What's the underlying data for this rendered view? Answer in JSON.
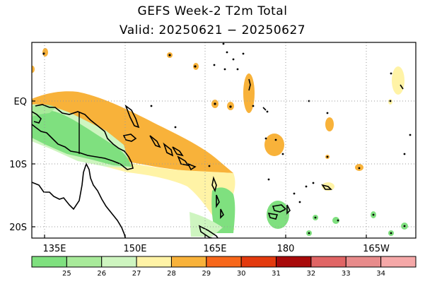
{
  "title": "GEFS Week-2 T2m Total",
  "subtitle": "Valid: 20250621 − 20250627",
  "map": {
    "region": "Western Pacific / Maritime Continent",
    "lon_labels": [
      "135E",
      "150E",
      "165E",
      "180",
      "165W"
    ],
    "lat_labels": [
      "EQ",
      "10S",
      "20S"
    ],
    "grid": "dotted"
  },
  "colorbar": {
    "labels": [
      "25",
      "26",
      "27",
      "28",
      "29",
      "30",
      "31",
      "32",
      "33",
      "34"
    ],
    "colors": [
      "#7fe07f",
      "#a8ea9a",
      "#cef5c0",
      "#fff3a6",
      "#f8b23a",
      "#f7671a",
      "#e33a0e",
      "#a80a0a",
      "#e06565",
      "#e88b8b",
      "#f5a8a8"
    ]
  }
}
